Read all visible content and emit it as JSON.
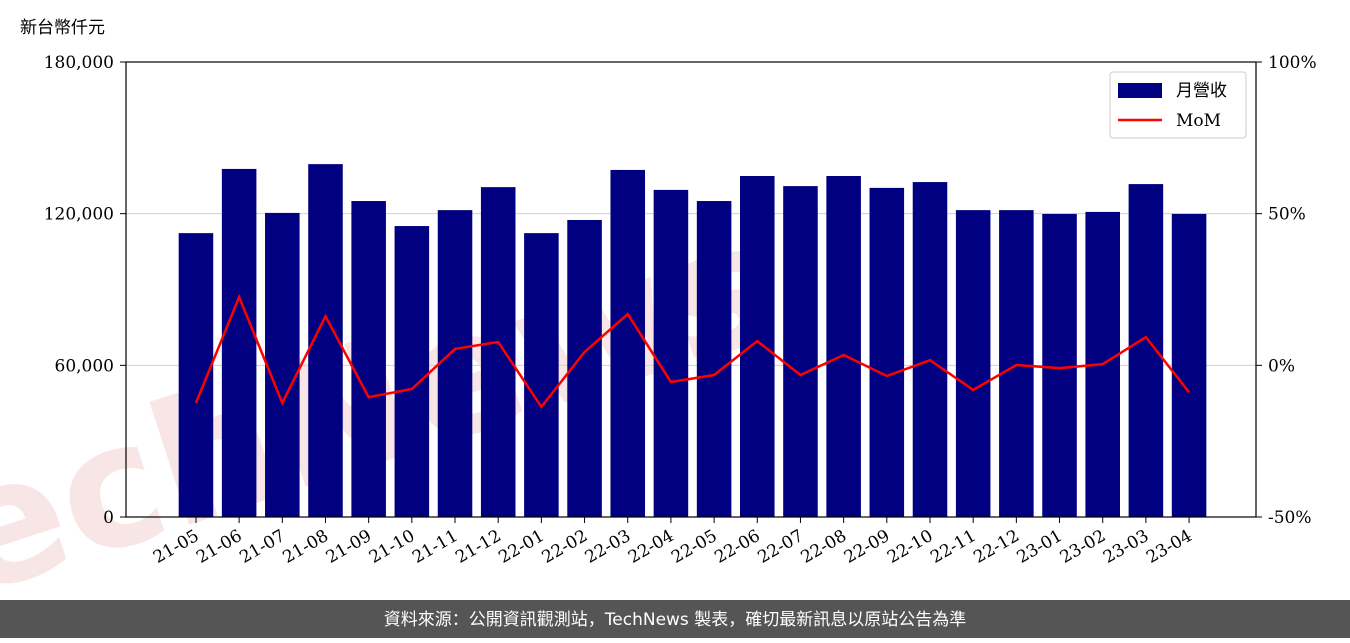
{
  "chart_data": {
    "type": "bar",
    "y_label": "新台幣仟元",
    "watermark": "TechNews",
    "footer": "資料來源：公開資訊觀測站，TechNews 製表，確切最新訊息以原站公告為準",
    "categories": [
      "21-05",
      "21-06",
      "21-07",
      "21-08",
      "21-09",
      "21-10",
      "21-11",
      "21-12",
      "22-01",
      "22-02",
      "22-03",
      "22-04",
      "22-05",
      "22-06",
      "22-07",
      "22-08",
      "22-09",
      "22-10",
      "22-11",
      "22-12",
      "23-01",
      "23-02",
      "23-03",
      "23-04"
    ],
    "series": [
      {
        "name": "月營收",
        "type": "bar",
        "color": "#000080",
        "values": [
          112300,
          137700,
          120300,
          139600,
          125000,
          115100,
          121400,
          130500,
          112300,
          117500,
          137300,
          129400,
          125000,
          134900,
          130900,
          134900,
          130200,
          132500,
          121400,
          121400,
          119900,
          120700,
          131700,
          119900
        ]
      },
      {
        "name": "MoM",
        "type": "line",
        "axis": "y2",
        "color": "#ff0000",
        "values": [
          -12.4,
          22.5,
          -12.4,
          16.2,
          -10.5,
          -7.8,
          5.4,
          7.7,
          -13.7,
          4.4,
          16.9,
          -5.5,
          -3.2,
          8.0,
          -3.2,
          3.4,
          -3.5,
          1.7,
          -8.1,
          0.1,
          -0.9,
          0.4,
          9.3,
          -8.9
        ]
      }
    ],
    "ylim": [
      0,
      180000
    ],
    "yticks": [
      0,
      {
        "value": 60000,
        "label": "60,000"
      },
      {
        "value": 120000,
        "label": "120,000"
      },
      {
        "value": 180000,
        "label": "180,000"
      }
    ],
    "y2lim": [
      -50,
      100
    ],
    "y2ticks": [
      {
        "value": -50,
        "label": "-50%"
      },
      {
        "value": 0,
        "label": "0%"
      },
      {
        "value": 50,
        "label": "50%"
      },
      {
        "value": 100,
        "label": "100%"
      }
    ],
    "grid": true,
    "legend": "upper right"
  }
}
